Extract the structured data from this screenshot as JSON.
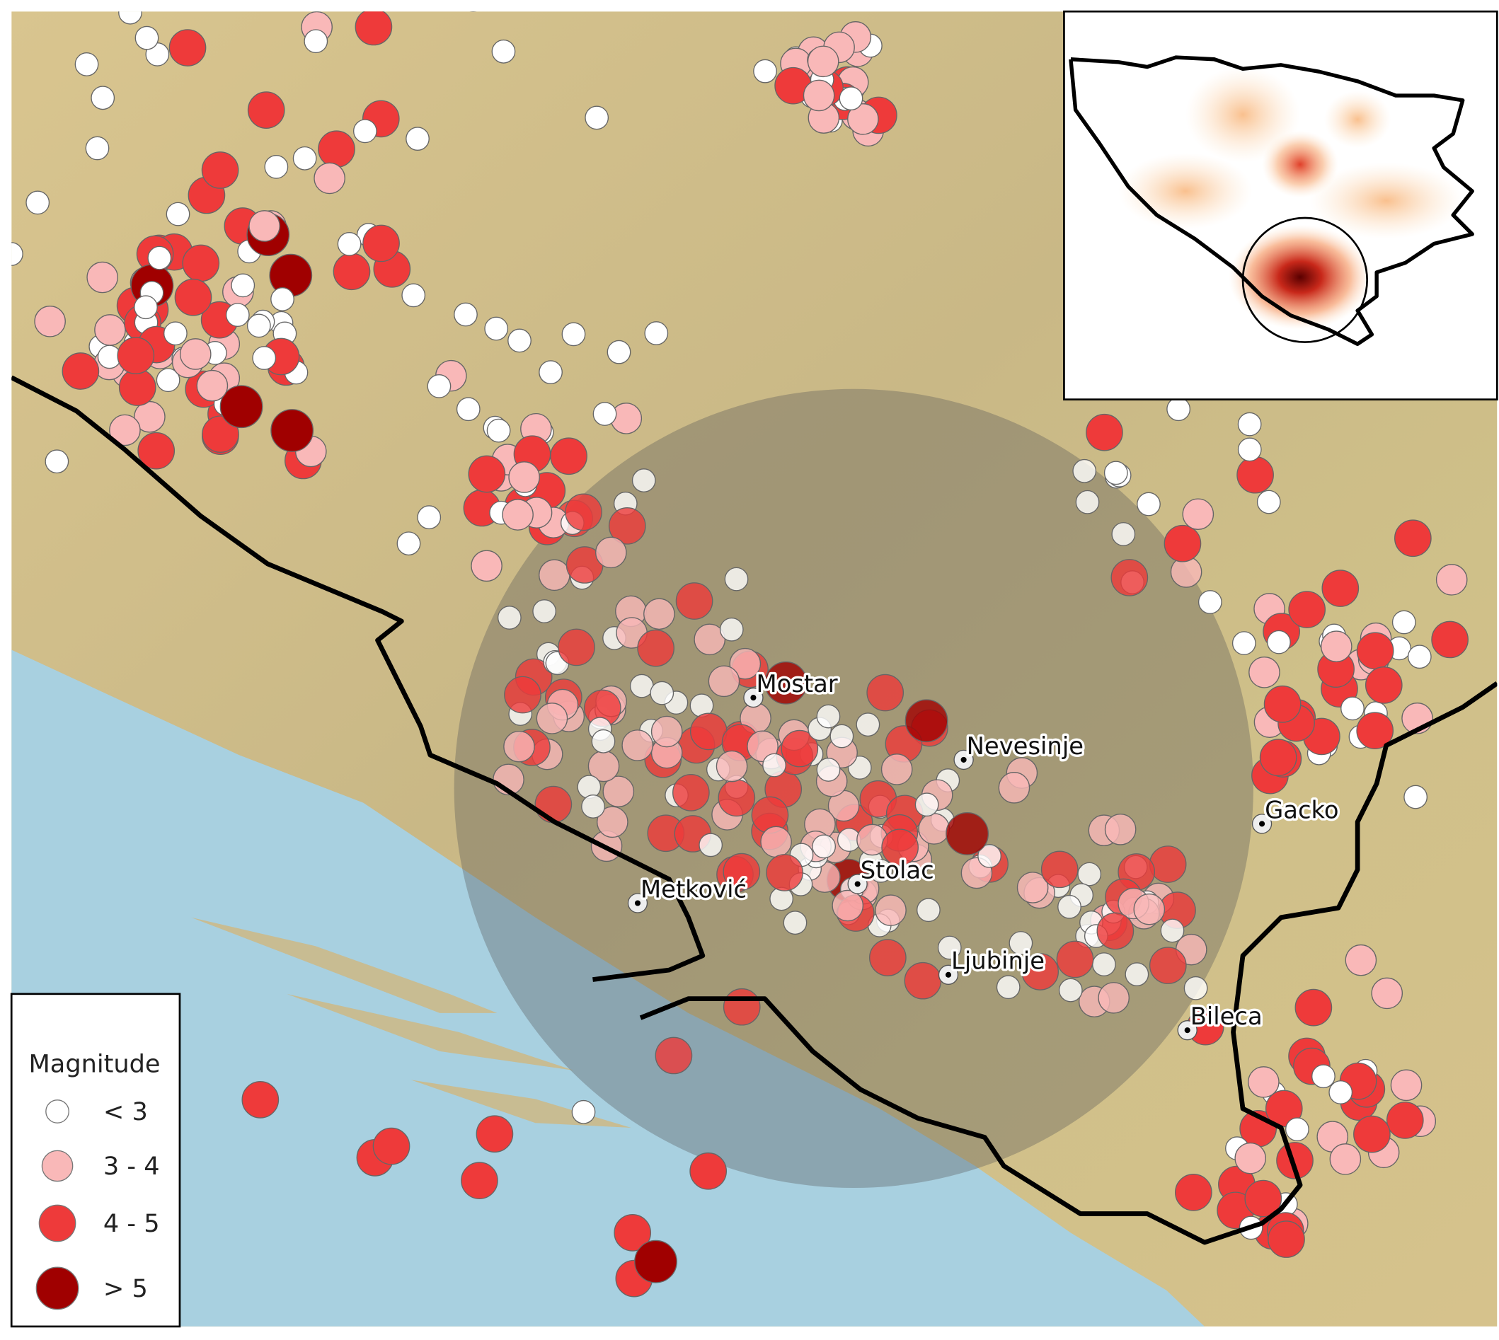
{
  "legend": {
    "title": "Magnitude",
    "items": [
      {
        "label": "< 3",
        "color": "#ffffff"
      },
      {
        "label": "3 - 4",
        "color": "#f9b8b8"
      },
      {
        "label": "4 - 5",
        "color": "#ee3a3a"
      },
      {
        "label": "> 5",
        "color": "#a00000"
      }
    ]
  },
  "cities": [
    {
      "name": "Mostar"
    },
    {
      "name": "Nevesinje"
    },
    {
      "name": "Gacko"
    },
    {
      "name": "Stolac"
    },
    {
      "name": "Metković"
    },
    {
      "name": "Ljubinje"
    },
    {
      "name": "Bileca"
    }
  ]
}
